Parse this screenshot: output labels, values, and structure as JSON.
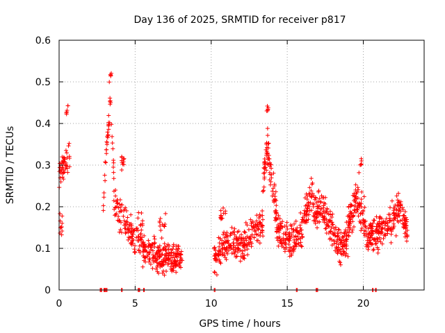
{
  "chart_data": {
    "type": "scatter",
    "title": "Day 136 of 2025, SRMTID for receiver p817",
    "xlabel": "GPS time / hours",
    "ylabel": "SRMTID / TECUs",
    "xlim": [
      0,
      24
    ],
    "ylim": [
      0,
      0.6
    ],
    "xticks": [
      0,
      5,
      10,
      15,
      20
    ],
    "yticks": [
      0,
      0.1,
      0.2,
      0.3,
      0.4,
      0.5,
      0.6
    ],
    "xtick_labels": [
      "0",
      "5",
      "10",
      "15",
      "20"
    ],
    "ytick_labels": [
      "0",
      "0.1",
      "0.2",
      "0.3",
      "0.4",
      "0.5",
      "0.6"
    ],
    "grid": true,
    "marker": "+",
    "color": "#ff0000",
    "series": [
      {
        "name": "SRMTID",
        "segments": [
          {
            "x_range": [
              0.0,
              0.7
            ],
            "trend": [
              [
                0.0,
                0.28
              ],
              [
                0.3,
                0.3
              ],
              [
                0.6,
                0.32
              ]
            ],
            "spread": 0.06,
            "count": 45
          },
          {
            "x_range": [
              0.05,
              0.2
            ],
            "trend": [
              [
                0.05,
                0.16
              ],
              [
                0.2,
                0.14
              ]
            ],
            "spread": 0.05,
            "count": 10
          },
          {
            "x_range": [
              0.45,
              0.6
            ],
            "trend": [
              [
                0.45,
                0.42
              ],
              [
                0.6,
                0.44
              ]
            ],
            "spread": 0.015,
            "count": 6
          },
          {
            "x_range": [
              2.9,
              3.6
            ],
            "trend": [
              [
                2.9,
                0.2
              ],
              [
                3.2,
                0.38
              ],
              [
                3.4,
                0.45
              ],
              [
                3.6,
                0.27
              ]
            ],
            "spread": 0.05,
            "count": 40
          },
          {
            "x_range": [
              3.3,
              3.45
            ],
            "trend": [
              [
                3.3,
                0.51
              ],
              [
                3.45,
                0.52
              ]
            ],
            "spread": 0.015,
            "count": 5
          },
          {
            "x_range": [
              3.6,
              5.5
            ],
            "trend": [
              [
                3.6,
                0.22
              ],
              [
                4.2,
                0.16
              ],
              [
                4.8,
                0.13
              ],
              [
                5.5,
                0.14
              ]
            ],
            "spread": 0.07,
            "count": 120
          },
          {
            "x_range": [
              4.1,
              4.3
            ],
            "trend": [
              [
                4.1,
                0.31
              ],
              [
                4.3,
                0.33
              ]
            ],
            "spread": 0.04,
            "count": 10
          },
          {
            "x_range": [
              5.5,
              8.1
            ],
            "trend": [
              [
                5.5,
                0.1
              ],
              [
                6.5,
                0.08
              ],
              [
                7.5,
                0.075
              ],
              [
                8.1,
                0.08
              ]
            ],
            "spread": 0.05,
            "count": 220
          },
          {
            "x_range": [
              6.6,
              7.0
            ],
            "trend": [
              [
                6.6,
                0.15
              ],
              [
                7.0,
                0.16
              ]
            ],
            "spread": 0.03,
            "count": 10
          },
          {
            "x_range": [
              10.2,
              12.5
            ],
            "trend": [
              [
                10.2,
                0.07
              ],
              [
                11.0,
                0.11
              ],
              [
                12.0,
                0.11
              ],
              [
                12.5,
                0.13
              ]
            ],
            "spread": 0.06,
            "count": 170
          },
          {
            "x_range": [
              10.6,
              11.0
            ],
            "trend": [
              [
                10.6,
                0.18
              ],
              [
                11.0,
                0.19
              ]
            ],
            "spread": 0.03,
            "count": 12
          },
          {
            "x_range": [
              12.5,
              13.4
            ],
            "trend": [
              [
                12.5,
                0.13
              ],
              [
                13.4,
                0.16
              ]
            ],
            "spread": 0.05,
            "count": 60
          },
          {
            "x_range": [
              13.4,
              14.3
            ],
            "trend": [
              [
                13.4,
                0.24
              ],
              [
                13.7,
                0.34
              ],
              [
                14.0,
                0.25
              ],
              [
                14.3,
                0.18
              ]
            ],
            "spread": 0.07,
            "count": 80
          },
          {
            "x_range": [
              13.65,
              13.8
            ],
            "trend": [
              [
                13.65,
                0.42
              ],
              [
                13.8,
                0.45
              ]
            ],
            "spread": 0.02,
            "count": 6
          },
          {
            "x_range": [
              14.3,
              16.0
            ],
            "trend": [
              [
                14.3,
                0.14
              ],
              [
                15.0,
                0.12
              ],
              [
                15.5,
                0.12
              ],
              [
                16.0,
                0.14
              ]
            ],
            "spread": 0.06,
            "count": 130
          },
          {
            "x_range": [
              16.0,
              17.0
            ],
            "trend": [
              [
                16.0,
                0.16
              ],
              [
                16.6,
                0.23
              ],
              [
                17.0,
                0.17
              ]
            ],
            "spread": 0.06,
            "count": 80
          },
          {
            "x_range": [
              17.0,
              19.0
            ],
            "trend": [
              [
                17.0,
                0.2
              ],
              [
                17.5,
                0.19
              ],
              [
                18.0,
                0.14
              ],
              [
                18.5,
                0.1
              ],
              [
                19.0,
                0.13
              ]
            ],
            "spread": 0.06,
            "count": 160
          },
          {
            "x_range": [
              19.0,
              20.2
            ],
            "trend": [
              [
                19.0,
                0.16
              ],
              [
                19.6,
                0.22
              ],
              [
                20.2,
                0.15
              ]
            ],
            "spread": 0.07,
            "count": 100
          },
          {
            "x_range": [
              19.7,
              19.9
            ],
            "trend": [
              [
                19.7,
                0.29
              ],
              [
                19.9,
                0.31
              ]
            ],
            "spread": 0.02,
            "count": 6
          },
          {
            "x_range": [
              20.2,
              22.9
            ],
            "trend": [
              [
                20.2,
                0.12
              ],
              [
                21.0,
                0.14
              ],
              [
                21.8,
                0.16
              ],
              [
                22.4,
                0.2
              ],
              [
                22.9,
                0.14
              ]
            ],
            "spread": 0.06,
            "count": 220
          }
        ],
        "zero_points_x": [
          2.7,
          2.75,
          2.8,
          2.95,
          3.0,
          3.05,
          3.1,
          3.15,
          4.1,
          4.15,
          5.2,
          5.25,
          5.3,
          5.55,
          5.6,
          10.2,
          10.25,
          15.6,
          15.65,
          16.9,
          16.95,
          17.0,
          20.6,
          20.65,
          20.8,
          20.85
        ]
      }
    ]
  }
}
